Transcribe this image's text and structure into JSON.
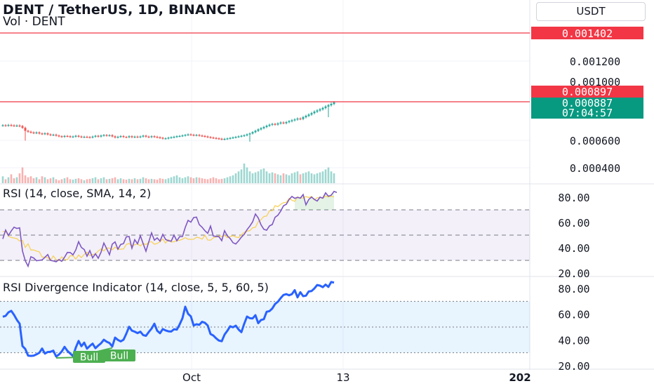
{
  "header": {
    "title": "DENT / TetherUS, 1D, BINANCE",
    "volume_label": "Vol · DENT",
    "currency": "USDT"
  },
  "price_axis": {
    "ticks": [
      "0.001200",
      "0.000600",
      "0.000400"
    ],
    "resistance_label": "0.001402",
    "resistance_value": 0.001402,
    "level_label": "0.000897",
    "level_value": 0.000897,
    "last_price_label": "0.000887",
    "countdown": "07:04:57",
    "partial_tick": "0.001000"
  },
  "rsi_panel": {
    "title": "RSI (14, close, SMA, 14, 2)",
    "ticks": [
      "80.00",
      "60.00",
      "40.00",
      "20.00"
    ]
  },
  "divergence_panel": {
    "title": "RSI Divergence Indicator (14, close, 5, 5, 60, 5)",
    "ticks": [
      "80.00",
      "60.00",
      "40.00",
      "20.00"
    ],
    "bull_labels": [
      "Bull",
      "Bull"
    ]
  },
  "time_axis": {
    "labels": [
      "Oct",
      "13",
      "202"
    ]
  },
  "colors": {
    "up": "#26a69a",
    "down": "#ef5350",
    "resistance": "#f23645",
    "rsi_line": "#7e57c2",
    "rsi_ma": "#f7d25a",
    "div_line": "#2962ff",
    "bull": "#4caf50",
    "grid": "#f0f3fa"
  },
  "chart_data": [
    {
      "type": "candlestick",
      "ylim": [
        0.0003,
        0.0015
      ],
      "x_range": [
        0,
        120
      ],
      "axis_tick_values": [
        0.0012,
        0.0006,
        0.0004
      ],
      "horizontal_lines": [
        0.001402,
        0.000897
      ],
      "series": [
        {
          "close": [
            0.000714,
            0.000712,
            0.000716,
            0.000713,
            0.00071,
            0.000712,
            0.000708,
            0.000695,
            0.000672,
            0.000665,
            0.00066,
            0.000655,
            0.00066,
            0.000652,
            0.000648,
            0.000653,
            0.000645,
            0.00064,
            0.000643,
            0.000636,
            0.000631,
            0.000627,
            0.000633,
            0.000631,
            0.000626,
            0.000629,
            0.000634,
            0.000629,
            0.000625,
            0.000627,
            0.000625,
            0.000622,
            0.000628,
            0.000634,
            0.000629,
            0.000636,
            0.00064,
            0.000636,
            0.000639,
            0.00063,
            0.000622,
            0.000627,
            0.000632,
            0.000626,
            0.000624,
            0.000631,
            0.000624,
            0.000628,
            0.000625,
            0.000629,
            0.000635,
            0.000628,
            0.000625,
            0.000631,
            0.000627,
            0.000623,
            0.000619,
            0.000614,
            0.000615,
            0.00062,
            0.000623,
            0.000627,
            0.000631,
            0.000633,
            0.000637,
            0.000641,
            0.000645,
            0.000642,
            0.000638,
            0.000641,
            0.000636,
            0.000633,
            0.000629,
            0.000625,
            0.000621,
            0.000618,
            0.000615,
            0.000612,
            0.000608,
            0.000611,
            0.000614,
            0.000618,
            0.000622,
            0.000626,
            0.00063,
            0.000634,
            0.000638,
            0.000645,
            0.000652,
            0.000662,
            0.000672,
            0.000683,
            0.000692,
            0.000701,
            0.00071,
            0.000718,
            0.000724,
            0.00072,
            0.000728,
            0.000735,
            0.00073,
            0.000738,
            0.000745,
            0.000752,
            0.000758,
            0.000765,
            0.000762,
            0.000775,
            0.000785,
            0.000795,
            0.000806,
            0.000817,
            0.000826,
            0.000835,
            0.000845,
            0.000856,
            0.000866,
            0.000876,
            0.000887
          ],
          "volume": [
            0.35,
            0.2,
            0.3,
            0.45,
            0.25,
            0.3,
            0.5,
            0.8,
            0.4,
            0.3,
            0.35,
            0.25,
            0.3,
            0.2,
            0.35,
            0.3,
            0.2,
            0.25,
            0.3,
            0.2,
            0.15,
            0.2,
            0.25,
            0.3,
            0.2,
            0.18,
            0.22,
            0.25,
            0.2,
            0.15,
            0.2,
            0.22,
            0.25,
            0.3,
            0.2,
            0.25,
            0.3,
            0.2,
            0.22,
            0.25,
            0.3,
            0.2,
            0.25,
            0.2,
            0.18,
            0.22,
            0.2,
            0.25,
            0.2,
            0.22,
            0.3,
            0.25,
            0.2,
            0.22,
            0.2,
            0.18,
            0.25,
            0.22,
            0.2,
            0.25,
            0.3,
            0.35,
            0.4,
            0.3,
            0.25,
            0.3,
            0.35,
            0.3,
            0.25,
            0.3,
            0.28,
            0.25,
            0.22,
            0.2,
            0.25,
            0.3,
            0.25,
            0.2,
            0.22,
            0.25,
            0.3,
            0.35,
            0.4,
            0.5,
            0.6,
            0.7,
            1.0,
            0.8,
            0.6,
            0.5,
            0.55,
            0.6,
            0.7,
            0.75,
            0.6,
            0.5,
            0.55,
            0.5,
            0.45,
            0.4,
            0.5,
            0.45,
            0.4,
            0.5,
            0.55,
            0.6,
            0.45,
            0.5,
            0.55,
            0.6,
            0.5,
            0.45,
            0.5,
            0.55,
            0.6,
            0.7,
            0.8,
            0.6,
            0.5
          ]
        }
      ]
    },
    {
      "type": "line",
      "ylim": [
        20,
        85
      ],
      "x_range": [
        0,
        120
      ],
      "band": [
        30,
        70
      ],
      "dashed_levels": [
        70,
        50,
        30
      ],
      "axis_tick_values": [
        80,
        60,
        40,
        20
      ],
      "series": [
        {
          "y": [
            47.0,
            54.0,
            49.7,
            53.2,
            56.3,
            55.3,
            55.8,
            37.5,
            29.7,
            25.4,
            32.9,
            31.9,
            29.7,
            30.0,
            30.4,
            32.4,
            34.6,
            30.0,
            29.5,
            28.9,
            30.6,
            29.3,
            32.5,
            36.3,
            36.2,
            34.4,
            38.3,
            44.8,
            40.2,
            38.6,
            33.3,
            37.7,
            32.0,
            35.2,
            31.7,
            36.5,
            43.7,
            39.3,
            34.5,
            42.9,
            44.6,
            38.9,
            42.6,
            43.3,
            48.6,
            48.9,
            39.6,
            46.4,
            43.1,
            49.5,
            43.2,
            37.2,
            44.6,
            51.8,
            46.0,
            47.8,
            45.3,
            50.6,
            46.6,
            45.5,
            45.2,
            50.0,
            45.5,
            48.8,
            48.9,
            56.1,
            61.7,
            60.3,
            63.9,
            64.2,
            58.3,
            56.2,
            53.5,
            51.4,
            57.1,
            49.3,
            49.0,
            48.7,
            45.6,
            53.5,
            49.4,
            47.3,
            44.0,
            43.0,
            45.5,
            48.4,
            50.6,
            54.3,
            57.1,
            60.5,
            66.7,
            63.6,
            58.1,
            54.6,
            53.9,
            57.3,
            58.4,
            64.1,
            65.7,
            69.0,
            73.2,
            74.4,
            78.2,
            80.6,
            79.1,
            79.9,
            79.3,
            82.1,
            74.0,
            78.2,
            80.1,
            78.3,
            77.0,
            80.0,
            79.3,
            83.5,
            80.8,
            81.6,
            84.6,
            83.8
          ]
        },
        {
          "y": [
            52.8,
            53.1,
            49.3,
            48.1,
            47.7,
            47.2,
            45.3,
            45.9,
            40.2,
            43.1,
            38.2,
            38.3,
            37.4,
            36.8,
            32.6,
            32.6,
            32.1,
            30.0,
            33.5,
            30.5,
            29.8,
            32.8,
            30.6,
            30.5,
            33.6,
            33.7,
            31.0,
            34.2,
            32.2,
            34.7,
            36.5,
            33.8,
            34.6,
            35.1,
            37.4,
            39.1,
            37.5,
            39.7,
            39.8,
            38.4,
            40.5,
            38.8,
            38.9,
            39.0,
            42.6,
            43.4,
            40.9,
            42.4,
            43.1,
            41.4,
            43.6,
            42.4,
            44.4,
            44.8,
            42.8,
            43.4,
            44.7,
            46.9,
            43.7,
            46.5,
            44.5,
            44.8,
            45.6,
            45.9,
            46.7,
            48.0,
            46.8,
            46.6,
            46.7,
            48.3,
            47.9,
            46.8,
            49.9,
            46.1,
            46.0,
            47.9,
            48.5,
            49.5,
            48.9,
            49.8,
            47.9,
            48.9,
            49.6,
            48.5,
            48.0,
            50.3,
            52.3,
            53.1,
            53.5,
            55.8,
            56.2,
            60.6,
            62.3,
            64.7,
            65.1,
            69.2,
            69.2,
            73.3,
            72.5,
            74.4,
            75.7,
            75.9,
            79.0,
            77.6,
            76.7,
            80.3,
            79.3,
            79.4,
            80.5,
            79.8,
            80.6,
            77.8,
            79.6,
            79.9,
            79.1,
            81.0,
            80.2,
            80.8,
            80.2
          ]
        }
      ]
    },
    {
      "type": "line",
      "ylim": [
        20,
        85
      ],
      "x_range": [
        0,
        120
      ],
      "band": [
        30,
        70
      ],
      "dashed_levels": [
        70,
        50,
        30
      ],
      "axis_tick_values": [
        80,
        60,
        40,
        20
      ],
      "bull_positions": [
        [
          27,
          35
        ],
        [
          38,
          35
        ]
      ],
      "series": [
        {
          "y": [
            58.0,
            58.7,
            61.4,
            62.6,
            59.5,
            55.6,
            52.6,
            35.2,
            33.0,
            27.8,
            27.6,
            27.8,
            28.8,
            30.0,
            33.3,
            29.4,
            30.6,
            30.8,
            31.7,
            27.1,
            28.7,
            31.0,
            34.6,
            31.5,
            29.5,
            27.4,
            34.0,
            39.2,
            35.1,
            37.9,
            33.2,
            35.3,
            37.1,
            33.6,
            35.6,
            37.4,
            40.1,
            38.6,
            37.6,
            34.9,
            41.8,
            40.0,
            38.9,
            40.1,
            44.8,
            50.2,
            47.2,
            46.4,
            45.3,
            46.4,
            43.8,
            43.2,
            46.1,
            48.8,
            52.6,
            47.1,
            45.2,
            48.5,
            47.4,
            46.7,
            46.5,
            48.3,
            48.0,
            52.0,
            56.8,
            65.8,
            60.3,
            58.3,
            51.2,
            52.2,
            51.7,
            54.1,
            53.3,
            51.2,
            44.6,
            43.4,
            41.2,
            39.5,
            39.0,
            44.1,
            47.1,
            50.6,
            49.8,
            51.1,
            48.1,
            46.0,
            52.5,
            58.2,
            56.9,
            56.7,
            59.2,
            53.0,
            55.5,
            56.1,
            61.9,
            62.4,
            64.4,
            67.9,
            69.7,
            72.5,
            74.9,
            75.6,
            74.7,
            75.6,
            78.7,
            73.1,
            77.1,
            74.0,
            74.4,
            77.7,
            78.0,
            80.0,
            82.7,
            82.2,
            81.0,
            83.0,
            81.2,
            85.0,
            84.6
          ]
        }
      ]
    }
  ]
}
